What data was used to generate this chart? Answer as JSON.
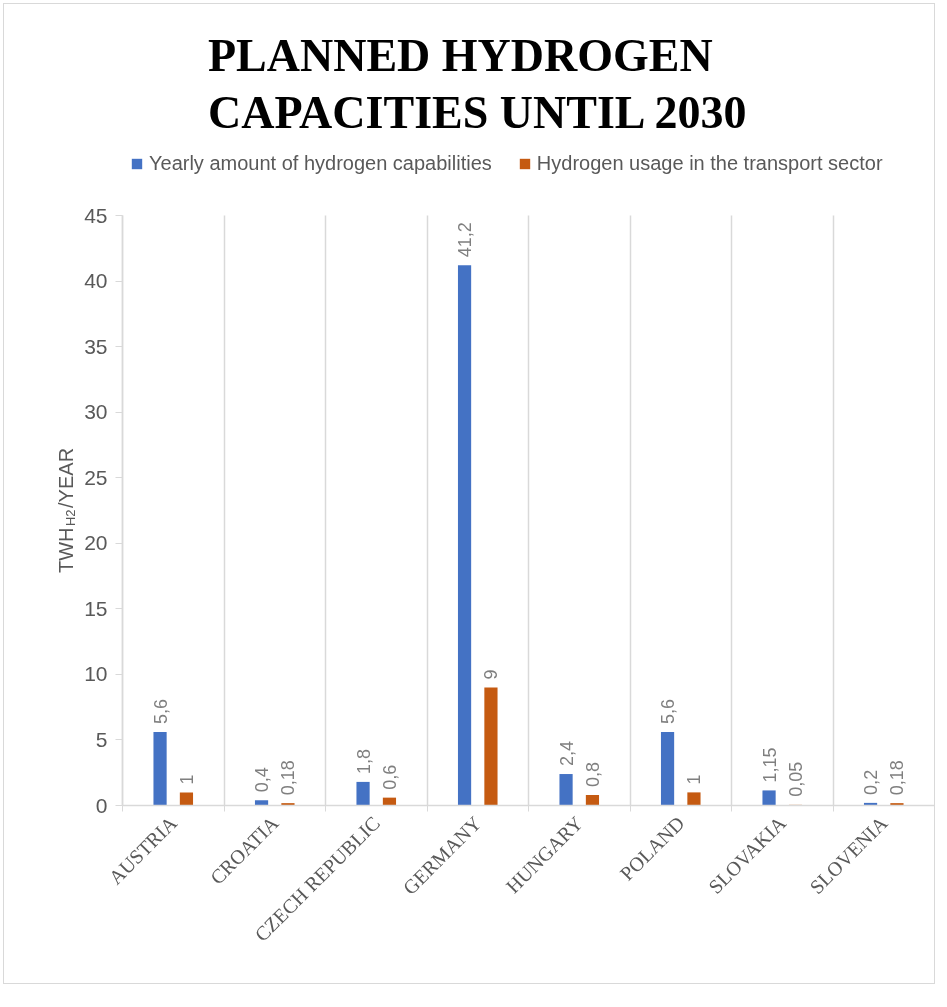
{
  "chart_data": {
    "type": "bar",
    "title": "PLANNED HYDROGEN CAPACITIES UNTIL 2030",
    "ylabel": "TWH$_{H2}$/YEAR",
    "categories": [
      "AUSTRIA",
      "CROATIA",
      "CZECH REPUBLIC",
      "GERMANY",
      "HUNGARY",
      "POLAND",
      "SLOVAKIA",
      "SLOVENIA"
    ],
    "series": [
      {
        "name": "Yearly amount of hydrogen capabilities",
        "color": "#4472c4",
        "values": [
          5.6,
          0.4,
          1.8,
          41.2,
          2.4,
          5.6,
          1.15,
          0.2
        ],
        "value_labels": [
          "5,6",
          "0,4",
          "1,8",
          "41,2",
          "2,4",
          "5,6",
          "1,15",
          "0,2"
        ]
      },
      {
        "name": "Hydrogen usage in the transport sector",
        "color": "#c55a11",
        "values": [
          1,
          0.18,
          0.6,
          9,
          0.8,
          1,
          0.05,
          0.18
        ],
        "value_labels": [
          "1",
          "0,18",
          "0,6",
          "9",
          "0,8",
          "1",
          "0,05",
          "0,18"
        ]
      }
    ],
    "ylim": [
      0,
      45
    ],
    "yticks": [
      0,
      5,
      10,
      15,
      20,
      25,
      30,
      35,
      40,
      45
    ],
    "grid": "x",
    "legend": "top"
  }
}
